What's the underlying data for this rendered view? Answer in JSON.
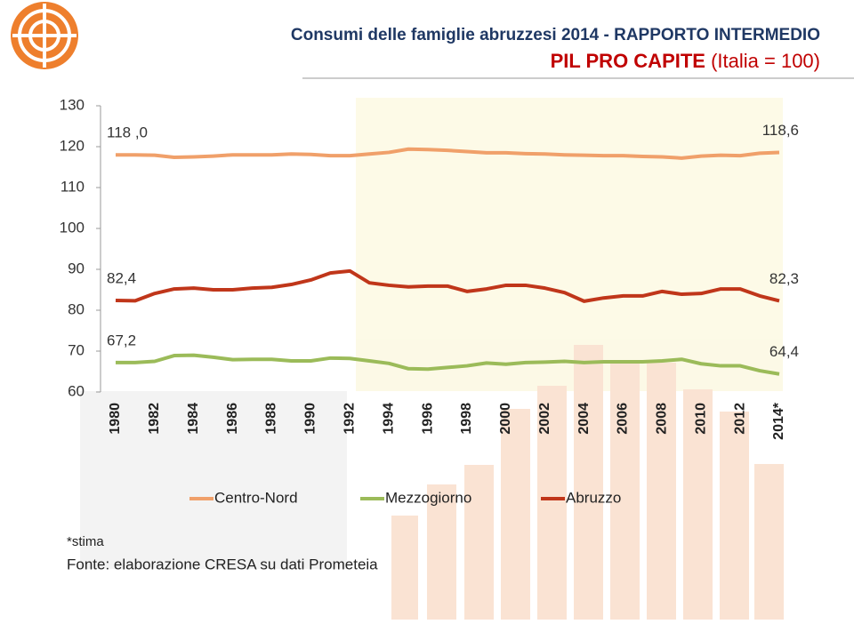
{
  "header": {
    "title": "Consumi delle famiglie abruzzesi 2014 - RAPPORTO INTERMEDIO",
    "subtitle_bold": "PIL PRO CAPITE",
    "subtitle_rest": "(Italia = 100)"
  },
  "chart_data": {
    "type": "line",
    "categories": [
      "1980",
      null,
      "1982",
      null,
      "1984",
      null,
      "1986",
      null,
      "1988",
      null,
      "1990",
      null,
      "1992",
      null,
      "1994",
      null,
      "1996",
      null,
      "1998",
      null,
      "2000",
      null,
      "2002",
      null,
      "2004",
      null,
      "2006",
      null,
      "2008",
      null,
      "2010",
      null,
      "2012",
      null,
      "2014*"
    ],
    "ylim": [
      60,
      130
    ],
    "yticks": [
      60,
      70,
      80,
      90,
      100,
      110,
      120,
      130
    ],
    "grid": false,
    "legend": "bottom",
    "series": [
      {
        "name": "Centro-Nord",
        "color": "#f0a06a",
        "values": [
          118.0,
          118.0,
          117.9,
          117.4,
          117.5,
          117.7,
          118.0,
          118.0,
          118.0,
          118.2,
          118.1,
          117.8,
          117.8,
          118.2,
          118.6,
          119.4,
          119.3,
          119.1,
          118.8,
          118.5,
          118.5,
          118.3,
          118.2,
          118.0,
          117.9,
          117.8,
          117.8,
          117.6,
          117.5,
          117.2,
          117.7,
          117.9,
          117.8,
          118.4,
          118.6
        ],
        "value_labels": [
          "118 ,0",
          null,
          null,
          null,
          null,
          null,
          null,
          null,
          null,
          null,
          null,
          null,
          null,
          null,
          null,
          null,
          null,
          null,
          null,
          null,
          null,
          null,
          null,
          null,
          null,
          null,
          null,
          null,
          null,
          null,
          null,
          null,
          null,
          null,
          "118,6"
        ]
      },
      {
        "name": "Mezzogiorno",
        "color": "#9bbb59",
        "values": [
          67.2,
          67.2,
          67.5,
          68.9,
          69.0,
          68.5,
          67.9,
          68.0,
          68.0,
          67.6,
          67.6,
          68.3,
          68.2,
          67.6,
          67.0,
          65.7,
          65.6,
          66.0,
          66.4,
          67.1,
          66.8,
          67.2,
          67.3,
          67.5,
          67.2,
          67.4,
          67.4,
          67.4,
          67.6,
          68.0,
          66.9,
          66.4,
          66.4,
          65.2,
          64.4
        ],
        "value_labels": [
          "67,2",
          null,
          null,
          null,
          null,
          null,
          null,
          null,
          null,
          null,
          null,
          null,
          null,
          null,
          null,
          null,
          null,
          null,
          null,
          null,
          null,
          null,
          null,
          null,
          null,
          null,
          null,
          null,
          null,
          null,
          null,
          null,
          null,
          null,
          "64,4"
        ]
      },
      {
        "name": "Abruzzo",
        "color": "#c0361a",
        "values": [
          82.4,
          82.3,
          84.1,
          85.2,
          85.4,
          85.0,
          85.0,
          85.4,
          85.6,
          86.3,
          87.4,
          89.1,
          89.6,
          86.7,
          86.1,
          85.7,
          85.9,
          85.9,
          84.6,
          85.2,
          86.1,
          86.1,
          85.4,
          84.3,
          82.2,
          83.0,
          83.5,
          83.5,
          84.6,
          83.9,
          84.1,
          85.2,
          85.2,
          83.5,
          82.3
        ],
        "value_labels": [
          "82,4",
          null,
          null,
          null,
          null,
          null,
          null,
          null,
          null,
          null,
          null,
          null,
          null,
          null,
          null,
          null,
          null,
          null,
          null,
          null,
          null,
          null,
          null,
          null,
          null,
          null,
          null,
          null,
          null,
          null,
          null,
          null,
          null,
          null,
          "82,3"
        ]
      }
    ]
  },
  "notes": {
    "estimate": "*stima",
    "source": "Fonte: elaborazione CRESA su dati Prometeia"
  }
}
